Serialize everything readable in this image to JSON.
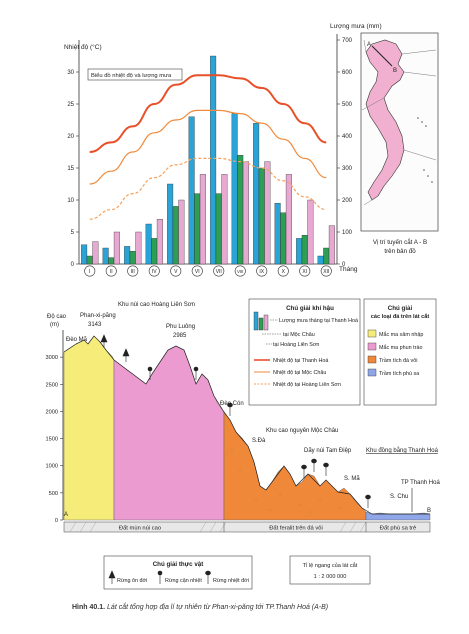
{
  "climate_chart": {
    "left_axis_label": "Nhiệt độ (°C)",
    "right_axis_label": "Lượng mưa (mm)",
    "legend_box": "Biểu đồ nhiệt độ và lượng mưa",
    "month_axis_label": "Tháng"
  },
  "map": {
    "section_label": "A",
    "section_label_b": "B",
    "caption_lines": [
      "Vị trí tuyến cắt A - B",
      "trên bản đồ"
    ]
  },
  "profile": {
    "y_label_line1": "Độ cao",
    "y_label_line2": "(m)",
    "point_a": "A",
    "point_b": "B",
    "peaks": {
      "deo_ma": "Đèo Mã",
      "phan_xi_pang": "Phan-xi-păng",
      "phan_xi_pang_h": "3143",
      "hoang_lien_son": "Khu núi cao Hoàng Liên Sơn",
      "phu_luong": "Phu Luông",
      "phu_luong_h": "2985",
      "deo_con": "Đèo Cón",
      "moc_chau": "Khu cao nguyên Mộc Châu",
      "song_da": "S.Đà",
      "tam_diep": "Dãy núi Tam Điệp",
      "song_ma": "S. Mã",
      "dong_bang": "Khu đồng bằng Thanh Hoá",
      "tp_thanh_hoa": "TP Thanh Hoá",
      "song_chu": "S. Chu"
    },
    "soil_bands": [
      "Đất mùn núi cao",
      "Đất feralit trên đá vôi",
      "Đất phù sa trẻ"
    ]
  },
  "legend_climate": {
    "title": "Chú giải khí hậu",
    "items": [
      "Lượng mưa tháng tại Thanh Hoá",
      "tại Mộc Châu",
      "tại Hoàng Liên Sơn",
      "Nhiệt độ tại Thanh Hoá",
      "Nhiệt độ tại Mộc Châu",
      "Nhiệt độ tại Hoàng Liên Sơn"
    ]
  },
  "legend_rock": {
    "title_line1": "Chú giải",
    "title_line2": "các loại đá trên lát cắt",
    "items": [
      "Mắc ma xâm nhập",
      "Mắc ma phun trào",
      "Trầm tích đá vôi",
      "Trầm tích phù sa"
    ]
  },
  "legend_plant": {
    "title": "Chú giải thực vật",
    "items": [
      "Rừng ôn đới",
      "Rừng cận nhiệt",
      "Rừng nhiệt đới"
    ]
  },
  "scale": {
    "label": "Tỉ lệ ngang của lát cắt",
    "value": "1 : 2 000 000"
  },
  "caption": {
    "number": "Hình 40.1.",
    "text": "Lát cắt tổng hợp địa lí tự nhiên từ Phan-xi-păng tới TP.Thanh Hoá (A-B)"
  },
  "colors": {
    "rain_thanh_hoa": "#2aa3d6",
    "rain_moc_chau": "#2e9e55",
    "rain_hoang_lien_son": "#e7a8d2",
    "temp_thanh_hoa": "#e8502a",
    "temp_moc_chau": "#f08a3c",
    "temp_hoang_lien_son": "#f5a05a",
    "rock_intrusive": "#f5ec7a",
    "rock_volcanic": "#ec9bd0",
    "rock_limestone": "#f0883a",
    "rock_alluvium": "#8fa6e8",
    "map_fill": "#f1b0cf"
  },
  "chart_data": {
    "type": "bar",
    "title": "Biểu đồ nhiệt độ và lượng mưa",
    "xlabel": "Tháng",
    "ylabel": "Nhiệt độ (°C)",
    "y2label": "Lượng mưa (mm)",
    "categories": [
      "I",
      "II",
      "III",
      "IV",
      "V",
      "VI",
      "VII",
      "VIII",
      "IX",
      "X",
      "XI",
      "XII"
    ],
    "ylim": [
      0,
      35
    ],
    "y_ticks": [
      0,
      5,
      10,
      15,
      20,
      25,
      30
    ],
    "y2lim": [
      0,
      700
    ],
    "y2_ticks": [
      0,
      100,
      200,
      300,
      400,
      500,
      600,
      700
    ],
    "rain_series": [
      {
        "name": "Lượng mưa tháng tại Thanh Hoá",
        "values": [
          60,
          50,
          55,
          125,
          250,
          460,
          650,
          470,
          440,
          190,
          80,
          25
        ]
      },
      {
        "name": "tại Mộc Châu",
        "values": [
          25,
          20,
          40,
          80,
          180,
          220,
          220,
          340,
          300,
          160,
          90,
          50
        ]
      },
      {
        "name": "tại Hoàng Liên Sơn",
        "values": [
          70,
          100,
          100,
          140,
          200,
          280,
          280,
          320,
          320,
          280,
          200,
          120
        ]
      }
    ],
    "temp_series": [
      {
        "name": "Nhiệt độ tại Thanh Hoá",
        "values": [
          17.5,
          19,
          21.5,
          25,
          28,
          29.5,
          29.5,
          29,
          27.5,
          25,
          22,
          19
        ]
      },
      {
        "name": "Nhiệt độ tại Mộc Châu",
        "values": [
          12.5,
          14.5,
          17.5,
          20.5,
          22.5,
          24,
          24,
          23.5,
          22,
          19.5,
          16.5,
          13.5
        ]
      },
      {
        "name": "Nhiệt độ tại Hoàng Liên Sơn",
        "values": [
          7,
          8.5,
          11,
          13.5,
          15.5,
          16.5,
          16.5,
          16,
          15,
          13,
          10.5,
          8.5
        ]
      }
    ],
    "profile_ylim": [
      0,
      3500
    ],
    "profile_ticks": [
      0,
      500,
      1000,
      1500,
      2000,
      2500,
      3000
    ]
  }
}
